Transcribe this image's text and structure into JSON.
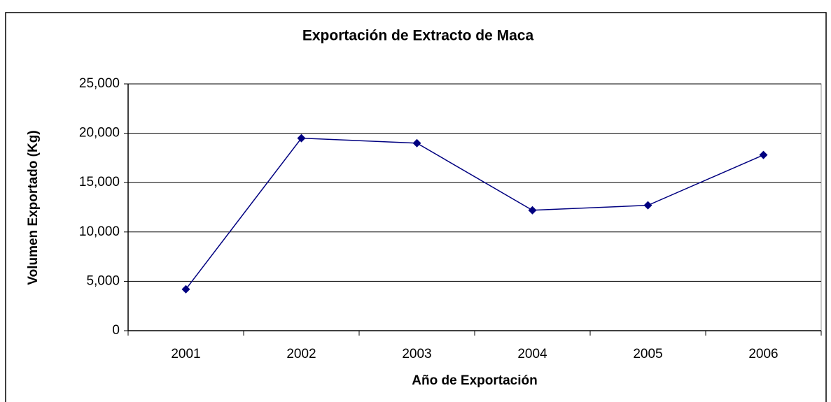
{
  "chart_data": {
    "type": "line",
    "title": "Exportación de Extracto de Maca",
    "x_label": "Año de Exportación",
    "y_label": "Volumen Exportado (Kg)",
    "categories": [
      "2001",
      "2002",
      "2003",
      "2004",
      "2005",
      "2006"
    ],
    "series": [
      {
        "name": "Volumen",
        "color": "#000080",
        "values": [
          4200,
          19500,
          19000,
          12200,
          12700,
          17800
        ]
      }
    ],
    "ylim": [
      0,
      25000
    ],
    "yticks": [
      0,
      {
        "value": 5000,
        "label": "5,000"
      },
      {
        "value": 10000,
        "label": "10,000"
      },
      {
        "value": 15000,
        "label": "15,000"
      },
      {
        "value": 20000,
        "label": "20,000"
      },
      {
        "value": 25000,
        "label": "25,000"
      }
    ],
    "grid": true
  }
}
